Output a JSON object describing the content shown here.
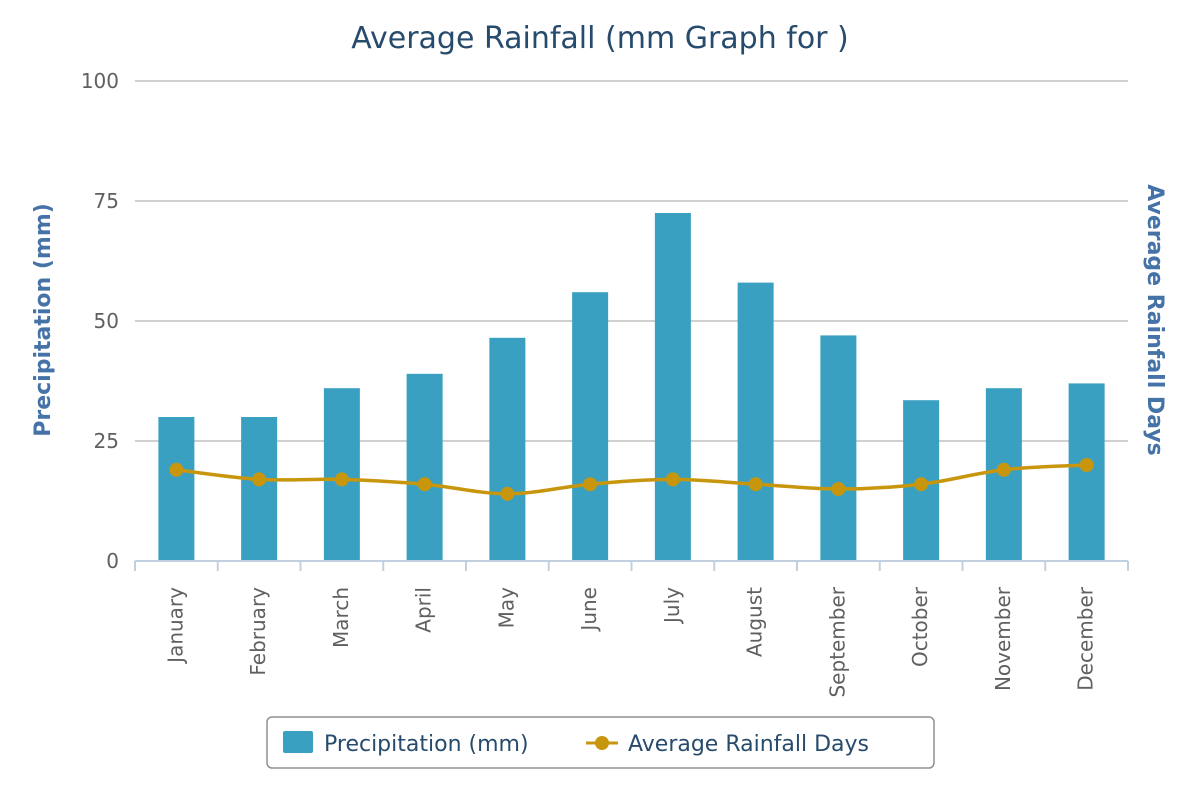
{
  "chart_data": {
    "type": "bar+line",
    "title": "Average Rainfall (mm Graph for )",
    "categories": [
      "January",
      "February",
      "March",
      "April",
      "May",
      "June",
      "July",
      "August",
      "September",
      "October",
      "November",
      "December"
    ],
    "series": [
      {
        "name": "Precipitation (mm)",
        "type": "bar",
        "axis": "left",
        "color": "#3aa0c2",
        "values": [
          30,
          30,
          36,
          39,
          46.5,
          56,
          72.5,
          58,
          47,
          33.5,
          36,
          37
        ]
      },
      {
        "name": "Average Rainfall Days",
        "type": "line",
        "axis": "right",
        "color": "#c8960c",
        "values": [
          19,
          17,
          17,
          16,
          14,
          16,
          17,
          16,
          15,
          16,
          19,
          20
        ]
      }
    ],
    "ylabel_left": "Precipitation (mm)",
    "ylabel_right": "Average Rainfall Days",
    "ylim": [
      0,
      100
    ],
    "yticks": [
      0,
      25,
      50,
      75,
      100
    ],
    "legend": [
      "Precipitation (mm)",
      "Average Rainfall Days"
    ],
    "grid": true
  }
}
